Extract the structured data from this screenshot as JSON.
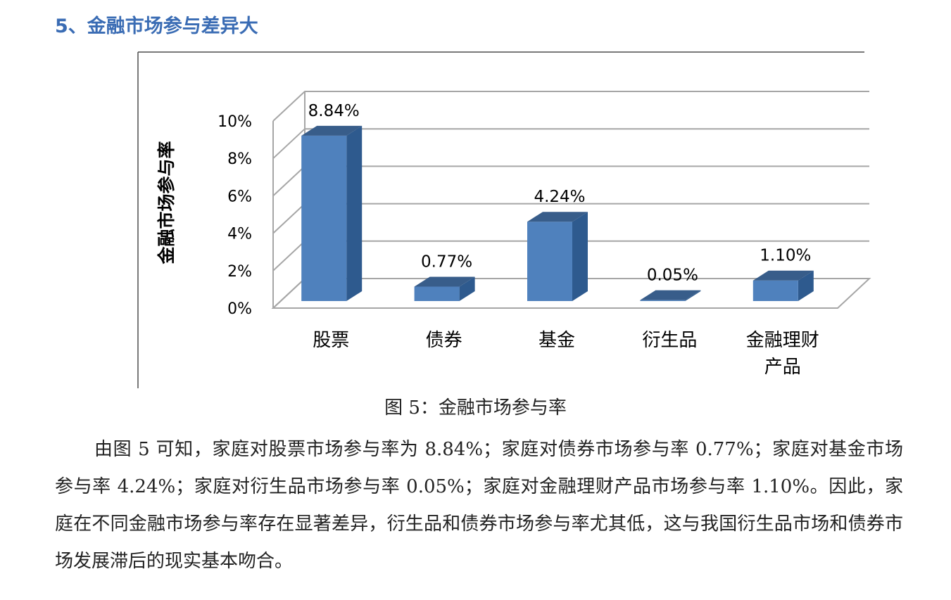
{
  "heading": "5、金融市场参与差异大",
  "caption": "图 5：金融市场参与率",
  "paragraph": "由图 5 可知，家庭对股票市场参与率为 8.84%；家庭对债券市场参与率 0.77%；家庭对基金市场参与率 4.24%；家庭对衍生品市场参与率 0.05%；家庭对金融理财产品市场参与率 1.10%。因此，家庭在不同金融市场参与率存在显著差异，衍生品和债券市场参与率尤其低，这与我国衍生品市场和债券市场发展滞后的现实基本吻合。",
  "chart_data": {
    "type": "bar",
    "style": "3d-column",
    "ylabel": "金融市场参与率",
    "xlabel": "",
    "ylim": [
      0,
      10
    ],
    "yticks": [
      "0%",
      "2%",
      "4%",
      "6%",
      "8%",
      "10%"
    ],
    "grid": true,
    "categories": [
      "股票",
      "债券",
      "基金",
      "衍生品",
      "金融理财产品"
    ],
    "values": [
      8.84,
      0.77,
      4.24,
      0.05,
      1.1
    ],
    "data_labels": [
      "8.84%",
      "0.77%",
      "4.24%",
      "0.05%",
      "1.10%"
    ],
    "unit": "%",
    "colors": {
      "bar_front": "#4f81bd",
      "bar_side": "#2e5a8e",
      "bar_top": "#385d8a",
      "grid": "#a6a6a6",
      "axis_text": "#000000"
    }
  }
}
